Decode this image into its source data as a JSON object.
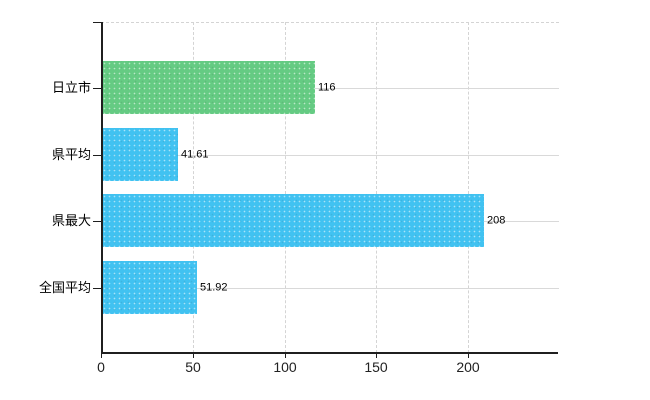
{
  "chart_data": {
    "type": "bar",
    "orientation": "horizontal",
    "title": "",
    "xlabel": "",
    "ylabel": "",
    "categories": [
      "日立市",
      "県平均",
      "県最大",
      "全国平均"
    ],
    "values": [
      116,
      41.61,
      208,
      51.92
    ],
    "value_labels": [
      "116",
      "41.61",
      "208",
      "51.92"
    ],
    "bar_colors": [
      "#65cb83",
      "#41c2f1",
      "#41c2f1",
      "#41c2f1"
    ],
    "x_ticks": [
      0,
      50,
      100,
      150,
      200
    ],
    "xlim": [
      0,
      249
    ],
    "grid": {
      "vertical": "dashed",
      "horizontal": "solid"
    },
    "legend": false
  },
  "colors": {
    "background": "#ffffff",
    "axis": "#1f1f1f",
    "grid_solid": "#d9d9d9",
    "grid_dashed": "#d4d4d4",
    "text": "#000000",
    "highlight_bar": "#65cb83",
    "default_bar": "#41c2f1"
  }
}
